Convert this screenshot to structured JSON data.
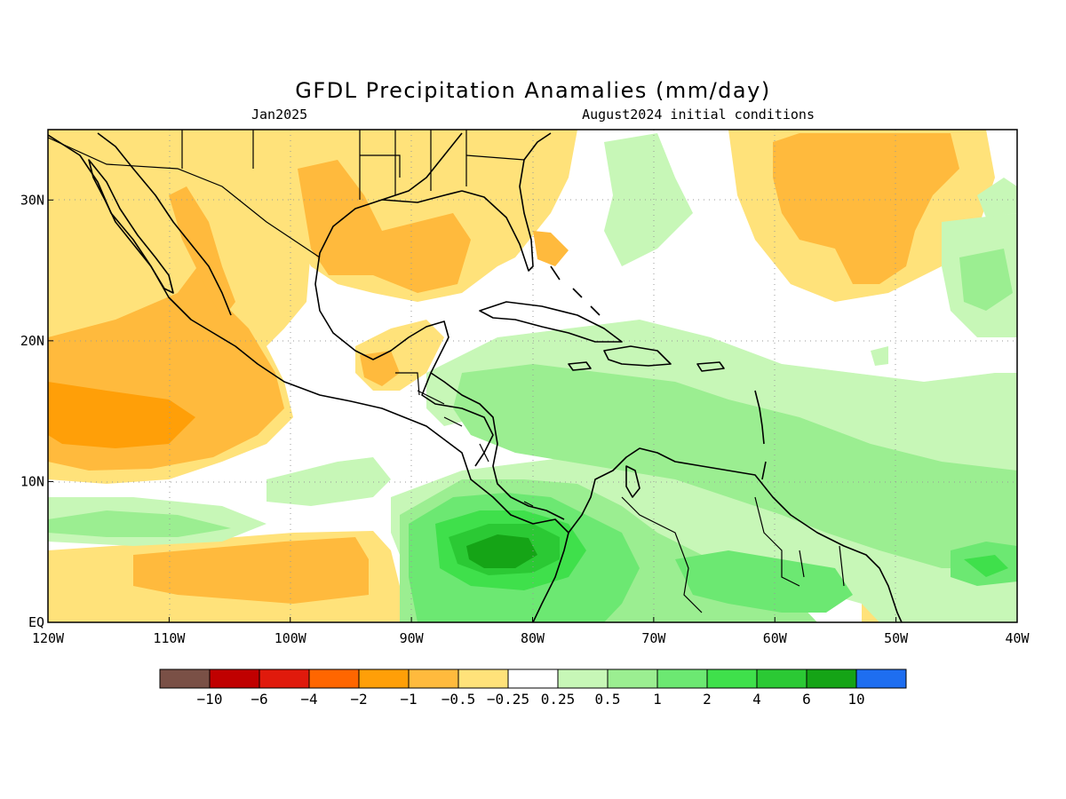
{
  "title": "GFDL Precipitation Anamalies (mm/day)",
  "valid_month": "Jan2025",
  "initial_conditions": "August2024 initial conditions",
  "map": {
    "lon_range": [
      -120,
      -40
    ],
    "lat_range": [
      0,
      35
    ],
    "x_ticks": [
      {
        "lon": -120,
        "label": "120W"
      },
      {
        "lon": -110,
        "label": "110W"
      },
      {
        "lon": -100,
        "label": "100W"
      },
      {
        "lon": -90,
        "label": "90W"
      },
      {
        "lon": -80,
        "label": "80W"
      },
      {
        "lon": -70,
        "label": "70W"
      },
      {
        "lon": -60,
        "label": "60W"
      },
      {
        "lon": -50,
        "label": "50W"
      },
      {
        "lon": -40,
        "label": "40W"
      }
    ],
    "y_ticks": [
      {
        "lat": 0,
        "label": "EQ"
      },
      {
        "lat": 10,
        "label": "10N"
      },
      {
        "lat": 20,
        "label": "20N"
      },
      {
        "lat": 30,
        "label": "30N"
      }
    ],
    "grid": "dotted"
  },
  "colorbar": {
    "colors": [
      "#7a5046",
      "#c00000",
      "#e01a0c",
      "#ff6600",
      "#ff9f08",
      "#ffba3d",
      "#ffe27a",
      "#ffffff",
      "#c7f7b7",
      "#9bee91",
      "#6ce872",
      "#3fe04b",
      "#2bc934",
      "#15a416",
      "#1e6ef0"
    ],
    "labels": [
      "-10",
      "-6",
      "-4",
      "-2",
      "-1",
      "-0.5",
      "-0.25",
      "0.25",
      "0.5",
      "1",
      "2",
      "4",
      "6",
      "10"
    ]
  }
}
